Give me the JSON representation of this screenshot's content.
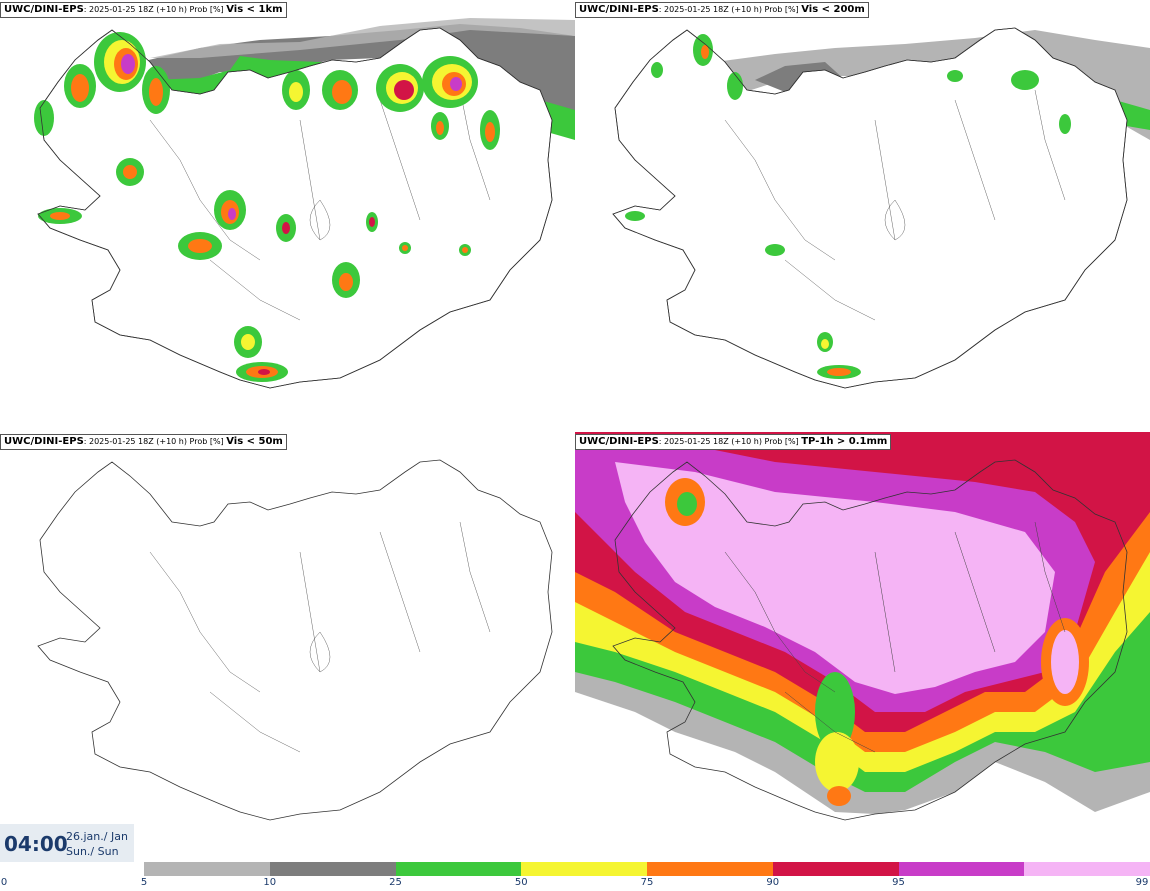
{
  "panels": [
    {
      "model": "UWC/DINI-EPS",
      "meta": ": 2025-01-25 18Z (+10 h) Prob [%] ",
      "variable": "Vis < 1km"
    },
    {
      "model": "UWC/DINI-EPS",
      "meta": ": 2025-01-25 18Z (+10 h) Prob [%] ",
      "variable": "Vis < 200m"
    },
    {
      "model": "UWC/DINI-EPS",
      "meta": ": 2025-01-25 18Z (+10 h) Prob [%] ",
      "variable": "Vis < 50m"
    },
    {
      "model": "UWC/DINI-EPS",
      "meta": ": 2025-01-25 18Z (+10 h) Prob [%] ",
      "variable": "TP-1h > 0.1mm"
    }
  ],
  "valid_time": {
    "time": "04:00",
    "date_line": "26.jan./ Jan",
    "day_line": "Sun./ Sun"
  },
  "colorbar": {
    "ticks": [
      "0",
      "5",
      "10",
      "25",
      "50",
      "75",
      "90",
      "95",
      "99"
    ],
    "colors": [
      "#ffffff",
      "#b4b4b4",
      "#7d7d7d",
      "#3cc83c",
      "#f5f532",
      "#ff7814",
      "#d21446",
      "#c83cc8",
      "#f5b4f5"
    ]
  },
  "palette": {
    "p5": "#b4b4b4",
    "p10": "#7d7d7d",
    "p25": "#3cc83c",
    "p50": "#f5f532",
    "p75": "#ff7814",
    "p90": "#d21446",
    "p95": "#c83cc8",
    "p99": "#f5b4f5"
  }
}
